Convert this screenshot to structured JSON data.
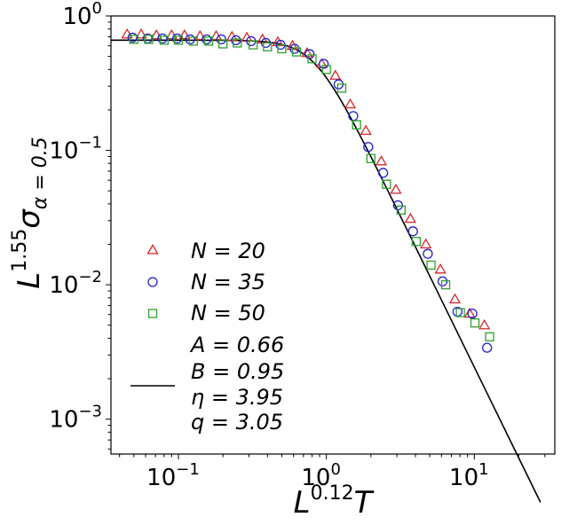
{
  "chart_data": {
    "type": "scatter",
    "xscale": "log",
    "yscale": "log",
    "xlim": [
      0.035,
      35
    ],
    "ylim": [
      0.00055,
      1.0
    ],
    "x_ticks": [
      {
        "value": 0.1,
        "base": "10",
        "exp": "−1"
      },
      {
        "value": 1,
        "base": "10",
        "exp": "0"
      },
      {
        "value": 10,
        "base": "10",
        "exp": "1"
      }
    ],
    "y_ticks": [
      {
        "value": 0.001,
        "base": "10",
        "exp": "−3"
      },
      {
        "value": 0.01,
        "base": "10",
        "exp": "−2"
      },
      {
        "value": 0.1,
        "base": "10",
        "exp": "−1"
      },
      {
        "value": 1,
        "base": "10",
        "exp": "0"
      }
    ],
    "xlabel": {
      "base": "L",
      "exp": "0.12",
      "tail": "T"
    },
    "ylabel": {
      "base": "L",
      "exp": "1.55",
      "tail": "σ",
      "sub": "α = 0.5"
    },
    "legend_position": "lower-left",
    "series": [
      {
        "name": "N = 20",
        "marker": "triangle",
        "color": "#d62728",
        "x": [
          0.045,
          0.056,
          0.071,
          0.09,
          0.11,
          0.14,
          0.18,
          0.23,
          0.29,
          0.37,
          0.47,
          0.59,
          0.74,
          0.93,
          1.15,
          1.45,
          1.85,
          2.35,
          2.95,
          3.7,
          4.7,
          5.9,
          7.4,
          9.3,
          11.7
        ],
        "y": [
          0.73,
          0.73,
          0.72,
          0.72,
          0.72,
          0.71,
          0.71,
          0.7,
          0.69,
          0.67,
          0.64,
          0.6,
          0.53,
          0.44,
          0.36,
          0.22,
          0.14,
          0.083,
          0.051,
          0.031,
          0.02,
          0.013,
          0.0078,
          0.0061,
          0.005
        ]
      },
      {
        "name": "N = 35",
        "marker": "circle",
        "color": "#1f1fd0",
        "x": [
          0.049,
          0.062,
          0.078,
          0.098,
          0.12,
          0.155,
          0.195,
          0.245,
          0.31,
          0.39,
          0.49,
          0.61,
          0.77,
          0.96,
          1.21,
          1.52,
          1.92,
          2.42,
          3.05,
          3.85,
          4.85,
          6.1,
          7.7,
          9.7,
          12.2
        ],
        "y": [
          0.69,
          0.68,
          0.68,
          0.68,
          0.67,
          0.67,
          0.67,
          0.66,
          0.65,
          0.63,
          0.61,
          0.57,
          0.52,
          0.44,
          0.31,
          0.18,
          0.106,
          0.068,
          0.039,
          0.025,
          0.017,
          0.0106,
          0.0063,
          0.0061,
          0.0034
        ]
      },
      {
        "name": "N = 50",
        "marker": "square",
        "color": "#2ca02c",
        "x": [
          0.05,
          0.063,
          0.08,
          0.1,
          0.126,
          0.16,
          0.2,
          0.25,
          0.32,
          0.4,
          0.5,
          0.63,
          0.8,
          1.0,
          1.27,
          1.6,
          2.0,
          2.55,
          3.2,
          4.05,
          5.1,
          6.4,
          8.05,
          10.1,
          12.7
        ],
        "y": [
          0.67,
          0.67,
          0.66,
          0.66,
          0.65,
          0.65,
          0.62,
          0.63,
          0.61,
          0.59,
          0.57,
          0.54,
          0.48,
          0.4,
          0.29,
          0.155,
          0.087,
          0.056,
          0.036,
          0.021,
          0.014,
          0.01,
          0.0062,
          0.0052,
          0.0041
        ]
      }
    ],
    "fit": {
      "A": 0.66,
      "B": 0.95,
      "eta": 3.95,
      "q": 3.05,
      "labels": [
        "A = 0.66",
        "B = 0.95",
        "η = 3.95",
        "q = 3.05"
      ],
      "color": "#000000"
    }
  }
}
